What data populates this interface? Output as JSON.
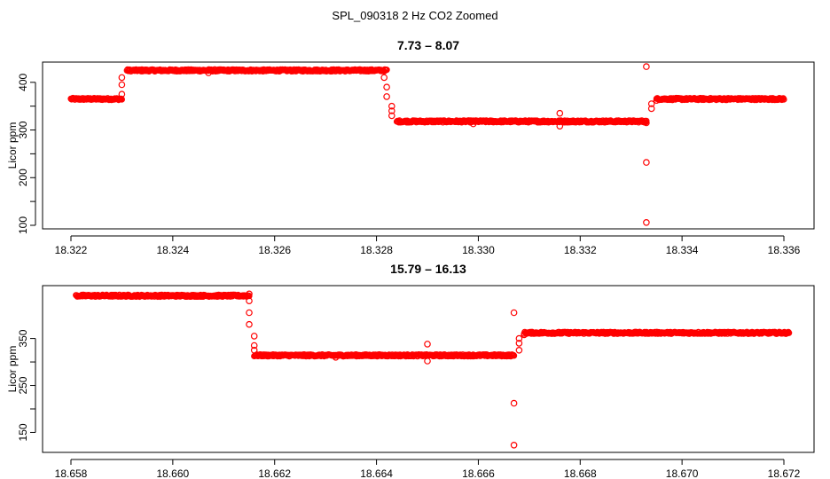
{
  "figure_title": "SPL_090318  2 Hz CO2 Zoomed",
  "colors": {
    "points": "#ff0000",
    "axes": "#000000",
    "background": "#ffffff"
  },
  "chart_data": [
    {
      "type": "scatter",
      "title": "7.73 – 8.07",
      "xlabel": "",
      "ylabel": "Licor ppm",
      "xlim": [
        18.322,
        18.336
      ],
      "ylim": [
        100,
        435
      ],
      "xticks": [
        "18.322",
        "18.324",
        "18.326",
        "18.328",
        "18.330",
        "18.332",
        "18.334",
        "18.336"
      ],
      "yticks": [
        "100",
        "200",
        "300",
        "400"
      ],
      "grid": false,
      "marker": "open-circle",
      "segments": [
        {
          "x_start": 18.322,
          "x_end": 18.323,
          "y": 365
        },
        {
          "x_start": 18.3231,
          "x_end": 18.3282,
          "y": 425
        },
        {
          "x_start": 18.3284,
          "x_end": 18.3333,
          "y": 318
        },
        {
          "x_start": 18.3335,
          "x_end": 18.336,
          "y": 365
        }
      ],
      "points": [
        {
          "x": 18.323,
          "y": 375
        },
        {
          "x": 18.323,
          "y": 395
        },
        {
          "x": 18.323,
          "y": 410
        },
        {
          "x": 18.3247,
          "y": 420
        },
        {
          "x": 18.32815,
          "y": 410
        },
        {
          "x": 18.3282,
          "y": 390
        },
        {
          "x": 18.3282,
          "y": 370
        },
        {
          "x": 18.3283,
          "y": 350
        },
        {
          "x": 18.3283,
          "y": 340
        },
        {
          "x": 18.3283,
          "y": 330
        },
        {
          "x": 18.3299,
          "y": 313
        },
        {
          "x": 18.3316,
          "y": 335
        },
        {
          "x": 18.3316,
          "y": 308
        },
        {
          "x": 18.3333,
          "y": 433
        },
        {
          "x": 18.3333,
          "y": 232
        },
        {
          "x": 18.3333,
          "y": 106
        },
        {
          "x": 18.3333,
          "y": 315
        },
        {
          "x": 18.3334,
          "y": 345
        },
        {
          "x": 18.3334,
          "y": 355
        },
        {
          "x": 18.3335,
          "y": 362
        }
      ]
    },
    {
      "type": "scatter",
      "title": "15.79 – 16.13",
      "xlabel": "",
      "ylabel": "Licor ppm",
      "xlim": [
        18.658,
        18.672
      ],
      "ylim": [
        115,
        455
      ],
      "xticks": [
        "18.658",
        "18.660",
        "18.662",
        "18.664",
        "18.666",
        "18.668",
        "18.670",
        "18.672"
      ],
      "yticks": [
        "150",
        "250",
        "350"
      ],
      "grid": false,
      "marker": "open-circle",
      "segments": [
        {
          "x_start": 18.6581,
          "x_end": 18.6615,
          "y": 441
        },
        {
          "x_start": 18.6616,
          "x_end": 18.6667,
          "y": 314
        },
        {
          "x_start": 18.6669,
          "x_end": 18.6721,
          "y": 362
        }
      ],
      "points": [
        {
          "x": 18.6615,
          "y": 445
        },
        {
          "x": 18.6615,
          "y": 430
        },
        {
          "x": 18.6615,
          "y": 405
        },
        {
          "x": 18.6615,
          "y": 380
        },
        {
          "x": 18.6616,
          "y": 355
        },
        {
          "x": 18.6616,
          "y": 335
        },
        {
          "x": 18.6616,
          "y": 325
        },
        {
          "x": 18.6632,
          "y": 310
        },
        {
          "x": 18.665,
          "y": 338
        },
        {
          "x": 18.665,
          "y": 302
        },
        {
          "x": 18.6667,
          "y": 405
        },
        {
          "x": 18.6667,
          "y": 212
        },
        {
          "x": 18.6667,
          "y": 123
        },
        {
          "x": 18.6668,
          "y": 325
        },
        {
          "x": 18.6668,
          "y": 340
        },
        {
          "x": 18.6668,
          "y": 350
        },
        {
          "x": 18.6669,
          "y": 358
        }
      ]
    }
  ]
}
